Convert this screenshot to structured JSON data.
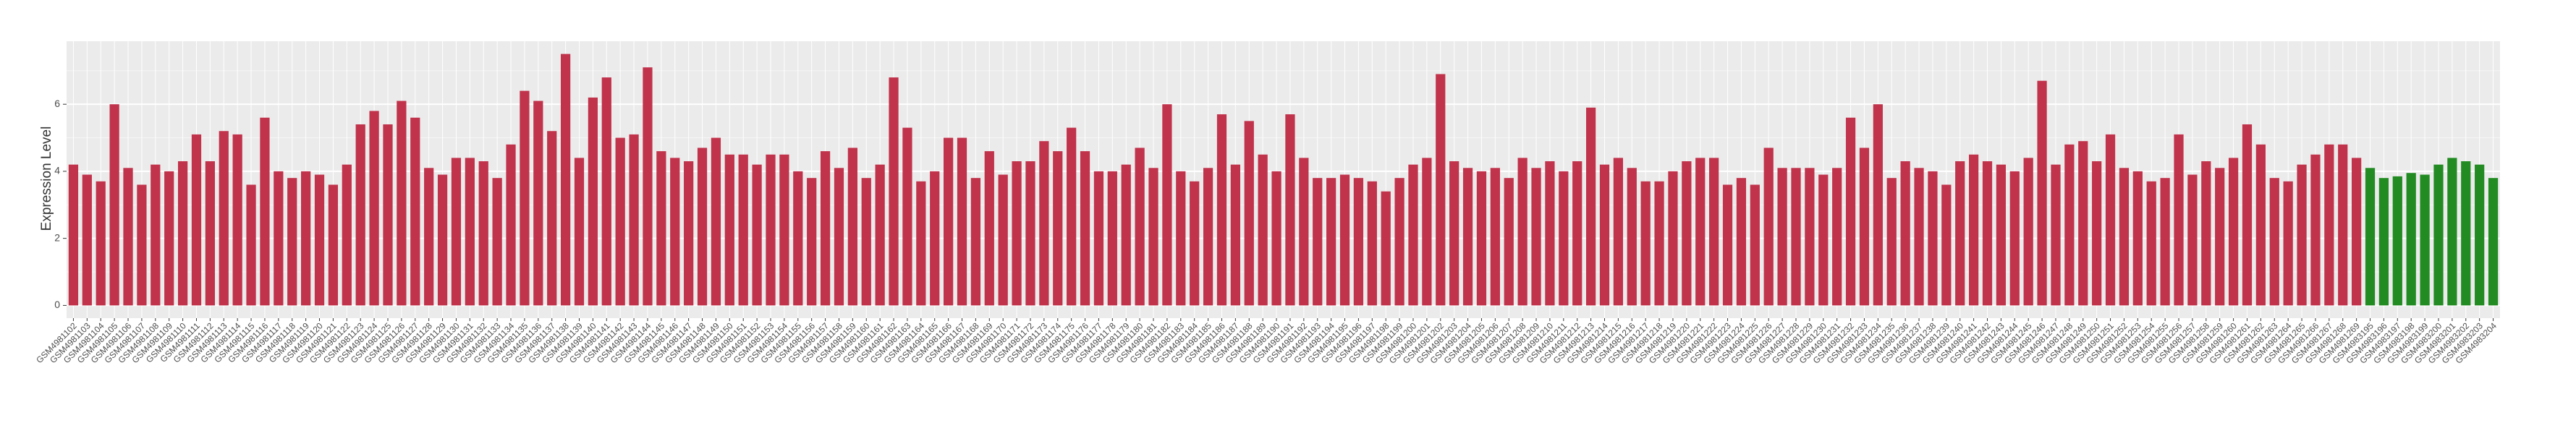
{
  "chart_data": {
    "type": "bar",
    "y_label": "Expression Level",
    "categories": [
      "GSM4981102",
      "GSM4981103",
      "GSM4981104",
      "GSM4981105",
      "GSM4981106",
      "GSM4981107",
      "GSM4981108",
      "GSM4981109",
      "GSM4981110",
      "GSM4981111",
      "GSM4981112",
      "GSM4981113",
      "GSM4981114",
      "GSM4981115",
      "GSM4981116",
      "GSM4981117",
      "GSM4981118",
      "GSM4981119",
      "GSM4981120",
      "GSM4981121",
      "GSM4981122",
      "GSM4981123",
      "GSM4981124",
      "GSM4981125",
      "GSM4981126",
      "GSM4981127",
      "GSM4981128",
      "GSM4981129",
      "GSM4981130",
      "GSM4981131",
      "GSM4981132",
      "GSM4981133",
      "GSM4981134",
      "GSM4981135",
      "GSM4981136",
      "GSM4981137",
      "GSM4981138",
      "GSM4981139",
      "GSM4981140",
      "GSM4981141",
      "GSM4981142",
      "GSM4981143",
      "GSM4981144",
      "GSM4981145",
      "GSM4981146",
      "GSM4981147",
      "GSM4981148",
      "GSM4981149",
      "GSM4981150",
      "GSM4981151",
      "GSM4981152",
      "GSM4981153",
      "GSM4981154",
      "GSM4981155",
      "GSM4981156",
      "GSM4981157",
      "GSM4981158",
      "GSM4981159",
      "GSM4981160",
      "GSM4981161",
      "GSM4981162",
      "GSM4981163",
      "GSM4981164",
      "GSM4981165",
      "GSM4981166",
      "GSM4981167",
      "GSM4981168",
      "GSM4981169",
      "GSM4981170",
      "GSM4981171",
      "GSM4981172",
      "GSM4981173",
      "GSM4981174",
      "GSM4981175",
      "GSM4981176",
      "GSM4981177",
      "GSM4981178",
      "GSM4981179",
      "GSM4981180",
      "GSM4981181",
      "GSM4981182",
      "GSM4981183",
      "GSM4981184",
      "GSM4981185",
      "GSM4981186",
      "GSM4981187",
      "GSM4981188",
      "GSM4981189",
      "GSM4981190",
      "GSM4981191",
      "GSM4981192",
      "GSM4981193",
      "GSM4981194",
      "GSM4981195",
      "GSM4981196",
      "GSM4981197",
      "GSM4981198",
      "GSM4981199",
      "GSM4981200",
      "GSM4981201",
      "GSM4981202",
      "GSM4981203",
      "GSM4981204",
      "GSM4981205",
      "GSM4981206",
      "GSM4981207",
      "GSM4981208",
      "GSM4981209",
      "GSM4981210",
      "GSM4981211",
      "GSM4981212",
      "GSM4981213",
      "GSM4981214",
      "GSM4981215",
      "GSM4981216",
      "GSM4981217",
      "GSM4981218",
      "GSM4981219",
      "GSM4981220",
      "GSM4981221",
      "GSM4981222",
      "GSM4981223",
      "GSM4981224",
      "GSM4981225",
      "GSM4981226",
      "GSM4981227",
      "GSM4981228",
      "GSM4981229",
      "GSM4981230",
      "GSM4981231",
      "GSM4981232",
      "GSM4981233",
      "GSM4981234",
      "GSM4981235",
      "GSM4981236",
      "GSM4981237",
      "GSM4981238",
      "GSM4981239",
      "GSM4981240",
      "GSM4981241",
      "GSM4981242",
      "GSM4981243",
      "GSM4981244",
      "GSM4981245",
      "GSM4981246",
      "GSM4981247",
      "GSM4981248",
      "GSM4981249",
      "GSM4981250",
      "GSM4981251",
      "GSM4981252",
      "GSM4981253",
      "GSM4981254",
      "GSM4981255",
      "GSM4981256",
      "GSM4981257",
      "GSM4981258",
      "GSM4981259",
      "GSM4981260",
      "GSM4981261",
      "GSM4981262",
      "GSM4981263",
      "GSM4981264",
      "GSM4981265",
      "GSM4981266",
      "GSM4981267",
      "GSM4981268",
      "GSM4981269",
      "GSM4983195",
      "GSM4983196",
      "GSM4983197",
      "GSM4983198",
      "GSM4983199",
      "GSM4983200",
      "GSM4983201",
      "GSM4983202",
      "GSM4983203",
      "GSM4983204"
    ],
    "values": [
      4.2,
      3.9,
      3.7,
      6.0,
      4.1,
      3.6,
      4.2,
      4.0,
      4.3,
      5.1,
      4.3,
      5.2,
      5.1,
      3.6,
      5.6,
      4.0,
      3.8,
      4.0,
      3.9,
      3.6,
      4.2,
      5.4,
      5.8,
      5.4,
      6.1,
      5.6,
      4.1,
      3.9,
      4.4,
      4.4,
      4.3,
      3.8,
      4.8,
      6.4,
      6.1,
      5.2,
      7.5,
      4.4,
      6.2,
      6.8,
      5.0,
      5.1,
      7.1,
      4.6,
      4.4,
      4.3,
      4.7,
      5.0,
      4.5,
      4.5,
      4.2,
      4.5,
      4.5,
      4.0,
      3.8,
      4.6,
      4.1,
      4.7,
      3.8,
      4.2,
      6.8,
      5.3,
      3.7,
      4.0,
      5.0,
      5.0,
      3.8,
      4.6,
      3.9,
      4.3,
      4.3,
      4.9,
      4.6,
      5.3,
      4.6,
      4.0,
      4.0,
      4.2,
      4.7,
      4.1,
      6.0,
      4.0,
      3.7,
      4.1,
      5.7,
      4.2,
      5.5,
      4.5,
      4.0,
      5.7,
      4.4,
      3.8,
      3.8,
      3.9,
      3.8,
      3.7,
      3.4,
      3.8,
      4.2,
      4.4,
      6.9,
      4.3,
      4.1,
      4.0,
      4.1,
      3.8,
      4.4,
      4.1,
      4.3,
      4.0,
      4.3,
      5.9,
      4.2,
      4.4,
      4.1,
      3.7,
      3.7,
      4.0,
      4.3,
      4.4,
      4.4,
      3.6,
      3.8,
      3.6,
      4.7,
      4.1,
      4.1,
      4.1,
      3.9,
      4.1,
      5.6,
      4.7,
      6.0,
      3.8,
      4.3,
      4.1,
      4.0,
      3.6,
      4.3,
      4.5,
      4.3,
      4.2,
      4.0,
      4.4,
      6.7,
      4.2,
      4.8,
      4.9,
      4.3,
      5.1,
      4.1,
      4.0,
      3.7,
      3.8,
      5.1,
      3.9,
      4.3,
      4.1,
      4.4,
      5.4,
      4.8,
      3.8,
      3.7,
      4.2,
      4.5,
      4.8,
      4.8,
      4.4,
      4.1,
      3.8,
      3.85,
      3.95,
      3.9,
      4.2,
      4.4,
      4.3,
      4.2,
      3.8
    ],
    "color": "#c1324b",
    "highlight_color": "#228b22",
    "highlighted": [
      "GSM4983195",
      "GSM4983196",
      "GSM4983197",
      "GSM4983198",
      "GSM4983199",
      "GSM4983200",
      "GSM4983201",
      "GSM4983202",
      "GSM4983203",
      "GSM4983204"
    ],
    "ylim": [
      -0.38,
      7.88
    ],
    "yticks": [
      0,
      2,
      4,
      6
    ],
    "y_minor_ticks": [
      1,
      3,
      5,
      7
    ],
    "grid": true
  }
}
